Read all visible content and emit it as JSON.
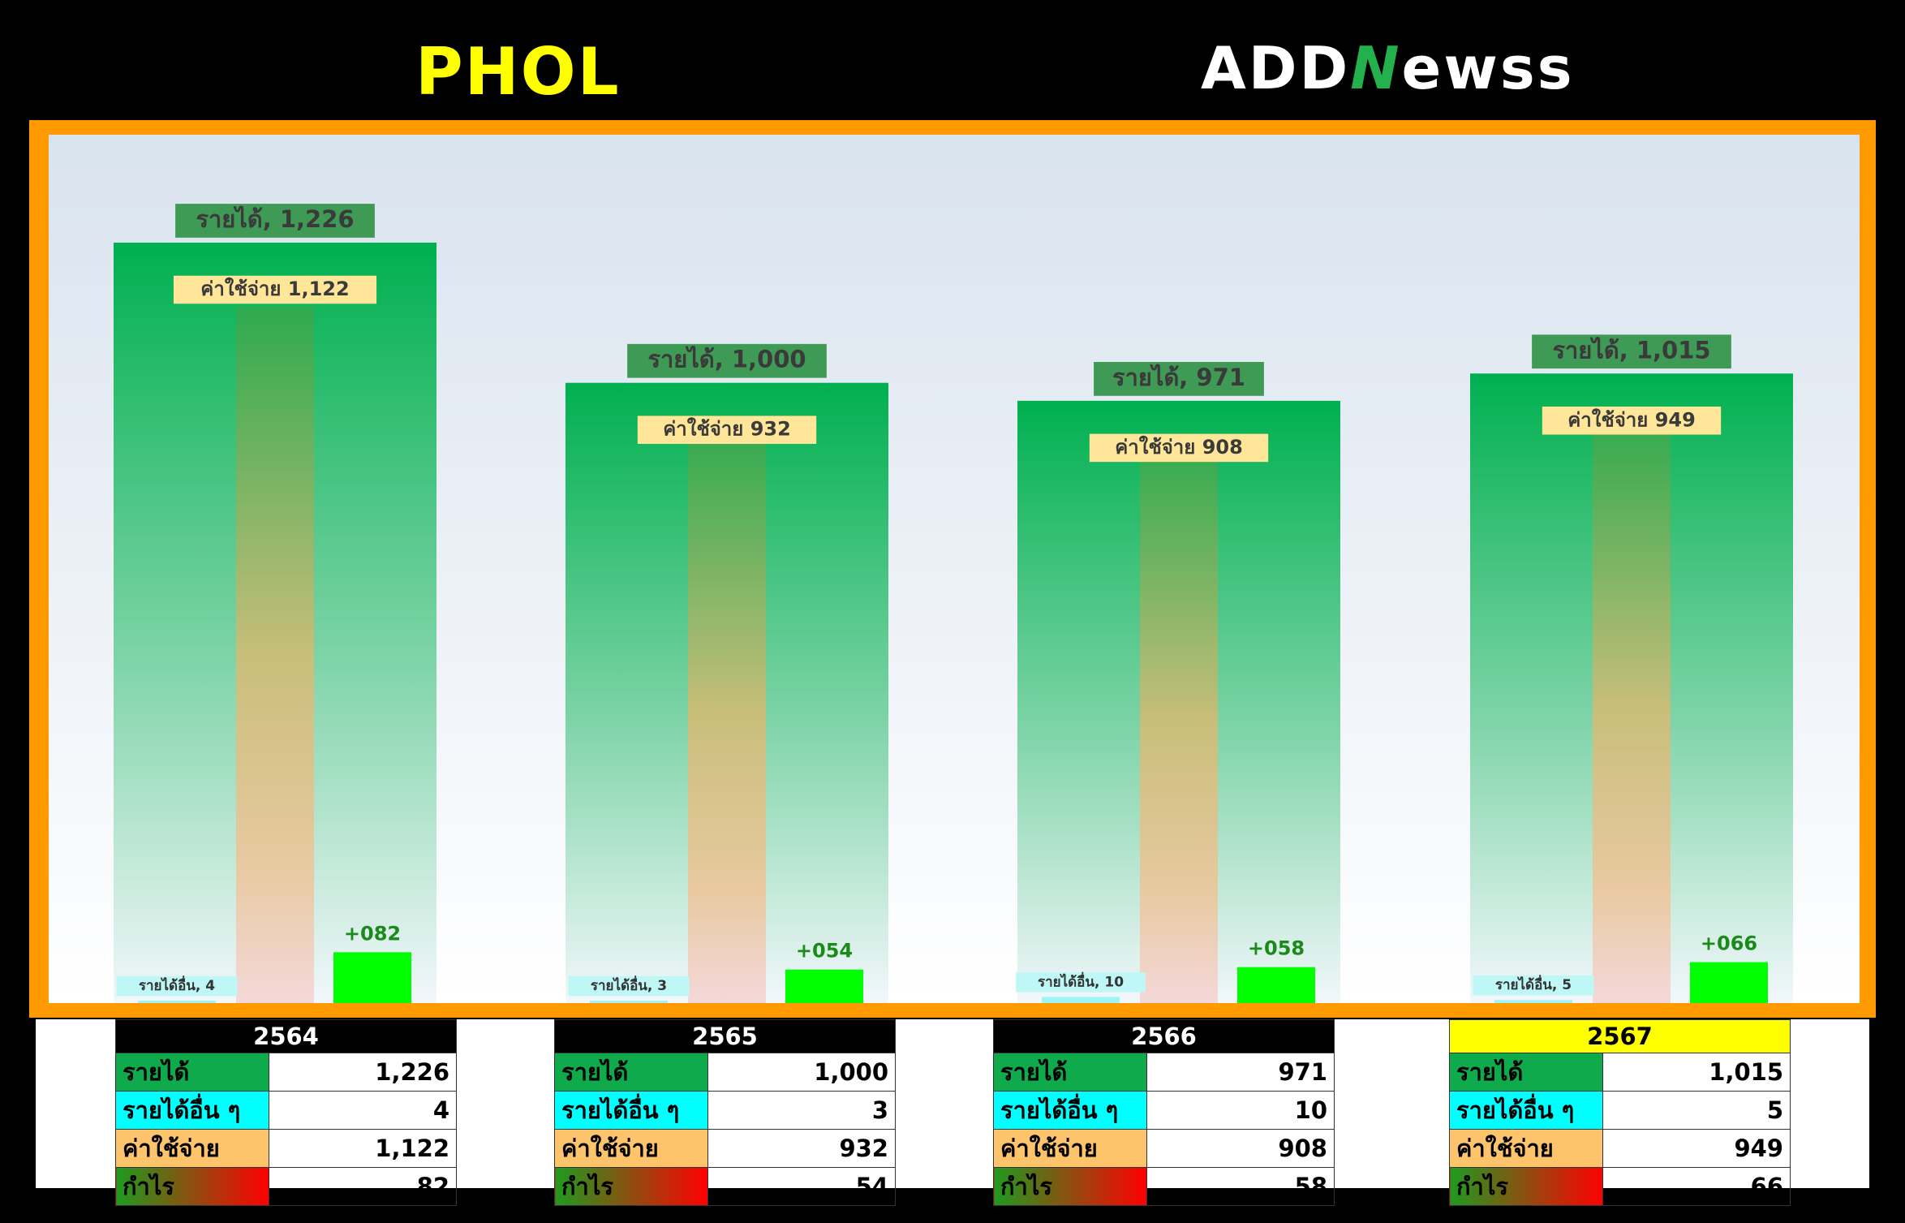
{
  "header": {
    "ticker": "PHOL",
    "brand_left": "ADD",
    "brand_n": "N",
    "brand_right": "ewss"
  },
  "colors": {
    "accent": "#ff9a00",
    "revenue": "#00b050",
    "other_income": "#00ffff",
    "expense": "#ffc000",
    "profit": "#00ff00",
    "ticker": "#ffff00",
    "highlight_year": "#ffff00"
  },
  "chart_data": {
    "type": "bar",
    "categories": [
      "2564",
      "2565",
      "2566",
      "2567"
    ],
    "series": [
      {
        "name": "รายได้",
        "values": [
          1226,
          1000,
          971,
          1015
        ]
      },
      {
        "name": "รายได้อื่น",
        "values": [
          4,
          3,
          10,
          5
        ]
      },
      {
        "name": "ค่าใช้จ่าย",
        "values": [
          1122,
          932,
          908,
          949
        ]
      },
      {
        "name": "กำไร",
        "values": [
          82,
          54,
          58,
          66
        ]
      }
    ],
    "labels": {
      "revenue": [
        "รายได้, 1,226",
        "รายได้, 1,000",
        "รายได้, 971",
        "รายได้, 1,015"
      ],
      "other": [
        "รายได้อื่น, 4",
        "รายได้อื่น, 3",
        "รายได้อื่น, 10",
        "รายได้อื่น, 5"
      ],
      "expense": [
        "ค่าใช้จ่าย 1,122",
        "ค่าใช้จ่าย 932",
        "ค่าใช้จ่าย 908",
        "ค่าใช้จ่าย 949"
      ],
      "profit": [
        "+082",
        "+054",
        "+058",
        "+066"
      ]
    },
    "ylim": [
      0,
      1400
    ],
    "grid": false,
    "legend": "none"
  },
  "tables": [
    {
      "year": "2564",
      "highlight": false,
      "rows": [
        {
          "label": "รายได้",
          "value": "1,226"
        },
        {
          "label": "รายได้อื่น ๆ",
          "value": "4"
        },
        {
          "label": "ค่าใช้จ่าย",
          "value": "1,122"
        },
        {
          "label": "กำไร",
          "value": "82"
        }
      ]
    },
    {
      "year": "2565",
      "highlight": false,
      "rows": [
        {
          "label": "รายได้",
          "value": "1,000"
        },
        {
          "label": "รายได้อื่น ๆ",
          "value": "3"
        },
        {
          "label": "ค่าใช้จ่าย",
          "value": "932"
        },
        {
          "label": "กำไร",
          "value": "54"
        }
      ]
    },
    {
      "year": "2566",
      "highlight": false,
      "rows": [
        {
          "label": "รายได้",
          "value": "971"
        },
        {
          "label": "รายได้อื่น ๆ",
          "value": "10"
        },
        {
          "label": "ค่าใช้จ่าย",
          "value": "908"
        },
        {
          "label": "กำไร",
          "value": "58"
        }
      ]
    },
    {
      "year": "2567",
      "highlight": true,
      "rows": [
        {
          "label": "รายได้",
          "value": "1,015"
        },
        {
          "label": "รายได้อื่น ๆ",
          "value": "5"
        },
        {
          "label": "ค่าใช้จ่าย",
          "value": "949"
        },
        {
          "label": "กำไร",
          "value": "66"
        }
      ]
    }
  ]
}
